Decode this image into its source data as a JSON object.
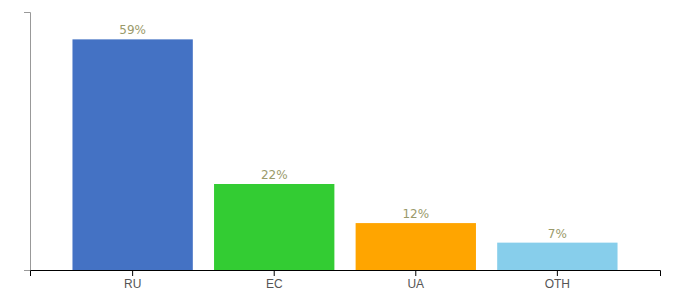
{
  "chart_data": {
    "type": "bar",
    "categories": [
      "RU",
      "EC",
      "UA",
      "OTH"
    ],
    "values": [
      59,
      22,
      12,
      7
    ],
    "value_labels": [
      "59%",
      "22%",
      "12%",
      "7%"
    ],
    "colors": [
      "#4472c4",
      "#33cc33",
      "#ffa500",
      "#87ceeb"
    ],
    "ylim": [
      0,
      66
    ],
    "data_labels": true,
    "tick_labels": "x"
  }
}
